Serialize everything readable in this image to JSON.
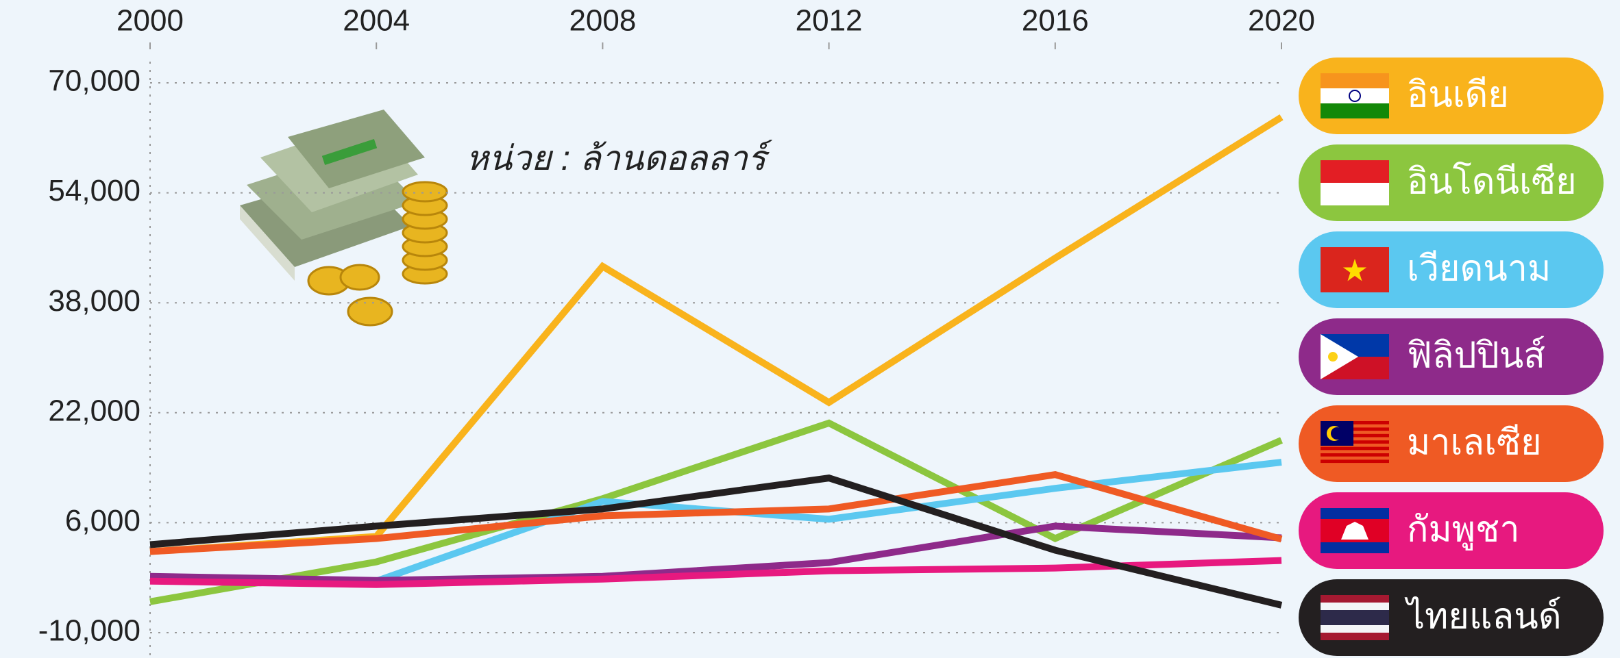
{
  "chart_data": {
    "type": "line",
    "annotation": "หน่วย : ล้านดอลลาร์",
    "x": [
      2000,
      2004,
      2008,
      2012,
      2016,
      2020
    ],
    "xlim": [
      2000,
      2020
    ],
    "xticks": [
      2000,
      2004,
      2008,
      2012,
      2016,
      2020
    ],
    "ylim": [
      -10000,
      70000
    ],
    "yticks": [
      {
        "value": -10000,
        "label": "-10,000"
      },
      {
        "value": 6000,
        "label": "6,000"
      },
      {
        "value": 22000,
        "label": "22,000"
      },
      {
        "value": 38000,
        "label": "38,000"
      },
      {
        "value": 54000,
        "label": "54,000"
      },
      {
        "value": 70000,
        "label": "70,000"
      }
    ],
    "grid": true,
    "legend": "right",
    "series": [
      {
        "name": "อินเดีย",
        "color": "#f9b31c",
        "values": [
          1800,
          4000,
          43300,
          23500,
          44500,
          65000
        ]
      },
      {
        "name": "อินโดนีเซีย",
        "color": "#8cc63f",
        "values": [
          -5500,
          300,
          9500,
          20500,
          3700,
          18000
        ]
      },
      {
        "name": "เวียดนาม",
        "color": "#5bc8f0",
        "values": [
          -2200,
          -2500,
          9100,
          6500,
          11000,
          14800
        ]
      },
      {
        "name": "ฟิลิปปินส์",
        "color": "#8e2a8a",
        "values": [
          -1800,
          -2400,
          -1800,
          200,
          5500,
          3800
        ]
      },
      {
        "name": "มาเลเซีย",
        "color": "#ef5a24",
        "values": [
          1800,
          3700,
          7000,
          8000,
          13000,
          3600
        ]
      },
      {
        "name": "กัมพูชา",
        "color": "#e7197f",
        "values": [
          -2500,
          -3000,
          -2200,
          -1000,
          -600,
          500
        ]
      },
      {
        "name": "ไทยแลนด์",
        "color": "#231f20",
        "values": [
          2800,
          5500,
          8000,
          12500,
          2000,
          -6000
        ]
      }
    ]
  }
}
